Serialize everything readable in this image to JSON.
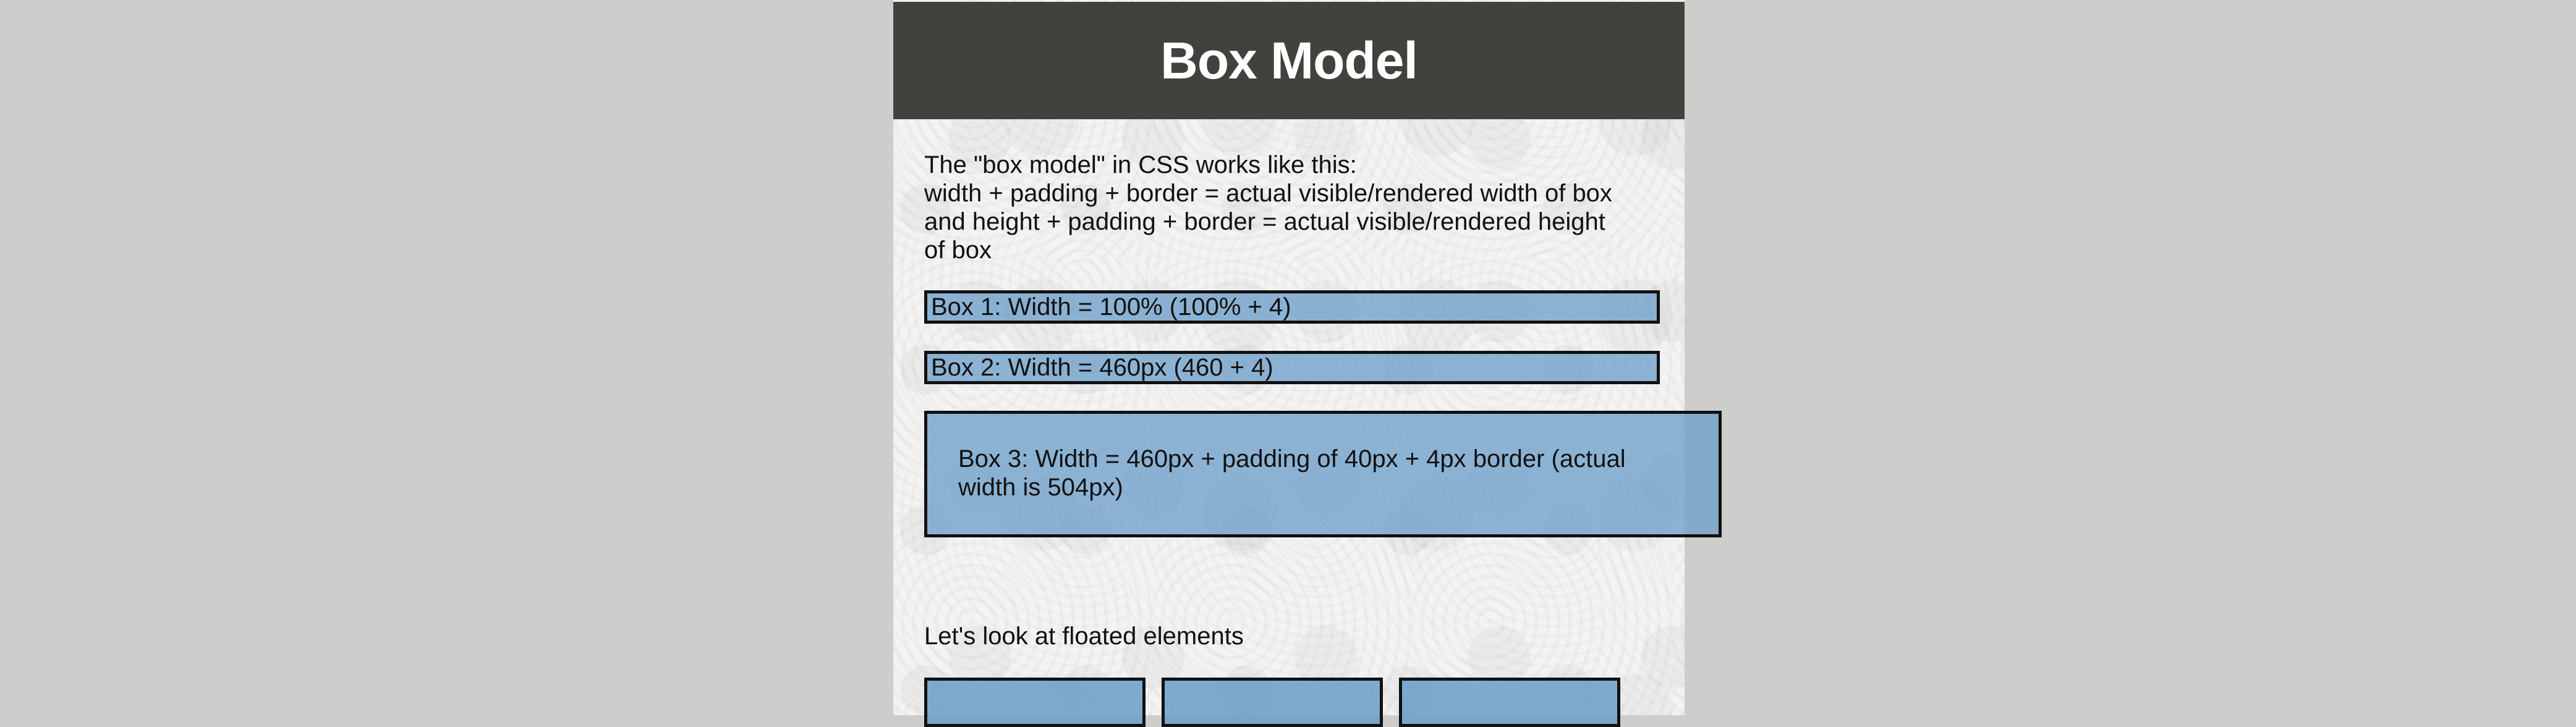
{
  "header": {
    "title": "Box Model"
  },
  "intro": {
    "lines": [
      "The \"box model\" in CSS works like this:",
      "width + padding + border = actual visible/rendered width of box",
      "and height + padding + border = actual visible/rendered height",
      "of box"
    ]
  },
  "boxes": {
    "box1": "Box 1: Width = 100% (100% + 4)",
    "box2": "Box 2: Width = 460px (460 + 4)",
    "box3": "Box 3: Width = 460px + padding of 40px + 4px border (actual width is 504px)"
  },
  "floats": {
    "label": "Let's look at floated elements"
  },
  "colors": {
    "background": "#cdcdcb",
    "header_bg": "#43413d",
    "box_fill": "#6b9dc9",
    "border": "#111111"
  }
}
